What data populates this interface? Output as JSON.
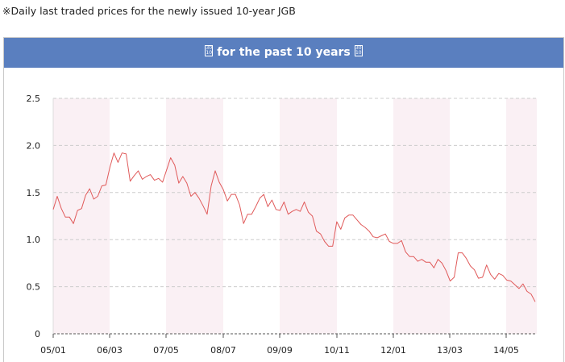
{
  "note": "※Daily last traded prices for the newly issued 10-year JGB",
  "header": {
    "title": "for the past 10 years",
    "left_icon": "page-icon",
    "right_icon": "page-icon"
  },
  "colors": {
    "header_bg": "#5a7fbf",
    "line": "#e05a5a",
    "band": "#faf0f4",
    "grid": "#cccccc"
  },
  "chart_data": {
    "type": "line",
    "x_tick_labels": [
      "05/01",
      "06/03",
      "07/05",
      "08/07",
      "09/09",
      "10/11",
      "12/01",
      "13/03",
      "14/05"
    ],
    "y_tick_labels": [
      "2.5",
      "2.0",
      "1.5",
      "1.0",
      "0.5",
      "0"
    ],
    "ylim": [
      0,
      2.5
    ],
    "grid": true,
    "shaded_bands": "alternating yearly",
    "series": [
      {
        "values": [
          1.32,
          1.46,
          1.33,
          1.24,
          1.24,
          1.17,
          1.31,
          1.33,
          1.47,
          1.54,
          1.43,
          1.46,
          1.57,
          1.58,
          1.77,
          1.92,
          1.82,
          1.92,
          1.91,
          1.62,
          1.68,
          1.73,
          1.64,
          1.67,
          1.69,
          1.63,
          1.65,
          1.61,
          1.74,
          1.87,
          1.79,
          1.6,
          1.67,
          1.6,
          1.46,
          1.5,
          1.44,
          1.36,
          1.27,
          1.57,
          1.73,
          1.61,
          1.53,
          1.41,
          1.48,
          1.48,
          1.37,
          1.17,
          1.27,
          1.27,
          1.35,
          1.44,
          1.48,
          1.35,
          1.42,
          1.32,
          1.31,
          1.4,
          1.27,
          1.3,
          1.32,
          1.3,
          1.4,
          1.29,
          1.25,
          1.09,
          1.06,
          0.98,
          0.93,
          0.93,
          1.19,
          1.11,
          1.23,
          1.26,
          1.26,
          1.21,
          1.16,
          1.13,
          1.09,
          1.03,
          1.02,
          1.04,
          1.06,
          0.98,
          0.96,
          0.96,
          0.99,
          0.87,
          0.82,
          0.82,
          0.77,
          0.79,
          0.76,
          0.76,
          0.7,
          0.79,
          0.75,
          0.67,
          0.56,
          0.6,
          0.86,
          0.86,
          0.8,
          0.72,
          0.68,
          0.59,
          0.6,
          0.73,
          0.63,
          0.58,
          0.64,
          0.62,
          0.57,
          0.56,
          0.52,
          0.48,
          0.53,
          0.45,
          0.42,
          0.34
        ]
      }
    ]
  }
}
